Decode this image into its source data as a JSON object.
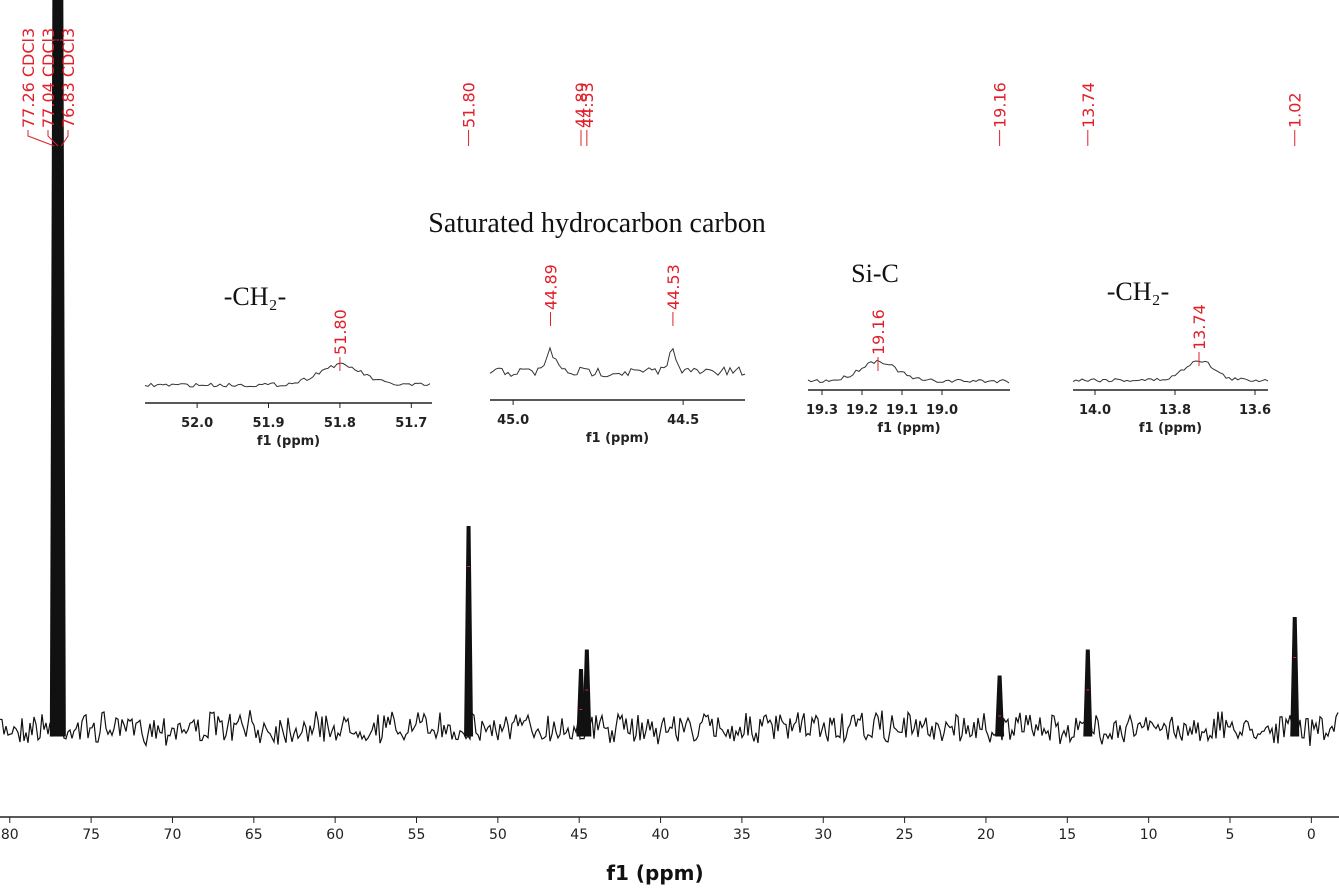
{
  "chart_data": {
    "type": "nmr-spectrum",
    "x_label": "f1 (ppm)",
    "xlim": [
      80.6,
      -1.7
    ],
    "ylim": [
      -8,
      112
    ],
    "xticks": [
      80,
      75,
      70,
      65,
      60,
      55,
      50,
      45,
      40,
      35,
      30,
      25,
      20,
      15,
      10,
      5,
      0
    ],
    "color": "#111111",
    "label_color": "#e0202a",
    "peaks": {
      "x": [
        77.26,
        77.04,
        76.83,
        51.8,
        44.89,
        44.53,
        19.16,
        13.74,
        1.02
      ],
      "value_labels": [
        "77.26 CDCl3",
        "77.04 CDCl3",
        "76.83 CDCl3",
        "51.80",
        "44.89",
        "44.53",
        "19.16",
        "13.74",
        "1.02"
      ],
      "heights": [
        112,
        112,
        112,
        31,
        9,
        12,
        8,
        12,
        17
      ]
    },
    "annotation": "Saturated hydrocarbon carbon",
    "insets": [
      {
        "title": "-CH₂-",
        "x_label": "f1 (ppm)",
        "xlim": [
          52.073,
          51.671
        ],
        "xticks": [
          {
            "value": 52,
            "label": "52.0"
          },
          51.9,
          51.8,
          51.7
        ],
        "peaks": {
          "x": [
            51.8
          ],
          "value_labels": [
            "51.80"
          ]
        }
      },
      {
        "x_label": "f1 (ppm)",
        "xlim": [
          45.068,
          44.318
        ],
        "xticks": [
          {
            "value": 45,
            "label": "45.0"
          },
          44.5
        ],
        "peaks": {
          "x": [
            44.89,
            44.53
          ],
          "value_labels": [
            "44.89",
            "44.53"
          ]
        }
      },
      {
        "title": "Si-C",
        "x_label": "f1 (ppm)",
        "xlim": [
          19.335,
          18.83
        ],
        "xticks": [
          19.3,
          19.2,
          19.1,
          {
            "value": 19,
            "label": "19.0"
          }
        ],
        "peaks": {
          "x": [
            19.16
          ],
          "value_labels": [
            "19.16"
          ]
        }
      },
      {
        "title": "-CH₂-",
        "x_label": "f1 (ppm)",
        "xlim": [
          14.055,
          13.5675
        ],
        "xticks": [
          {
            "value": 14,
            "label": "14.0"
          },
          13.8,
          13.6
        ],
        "peaks": {
          "x": [
            13.74
          ],
          "value_labels": [
            "13.74"
          ]
        }
      }
    ]
  }
}
